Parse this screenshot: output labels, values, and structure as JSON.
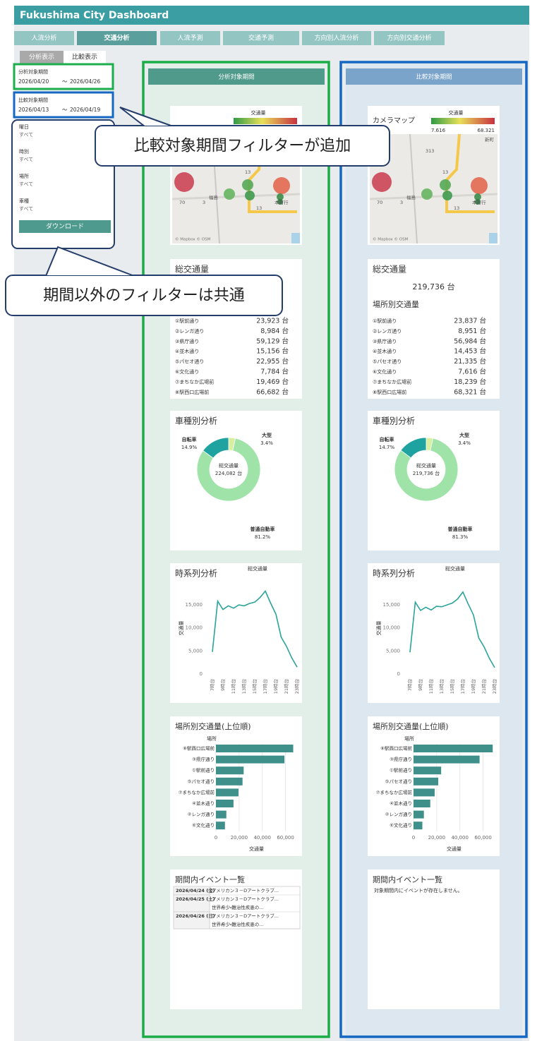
{
  "header": {
    "title": "Fukushima City Dashboard"
  },
  "tabs": [
    {
      "label": "人流分析"
    },
    {
      "label": "交通分析",
      "active": true
    },
    {
      "label": "人流予測"
    },
    {
      "label": "交通予測"
    },
    {
      "label": "方向別人流分析"
    },
    {
      "label": "方向別交通分析"
    }
  ],
  "view_tabs": [
    {
      "label": "分析表示"
    },
    {
      "label": "比較表示",
      "active": true
    }
  ],
  "filters": {
    "period": {
      "label": "分析対象期間",
      "from": "2026/04/20",
      "separator": "～",
      "to": "2026/04/26"
    },
    "compare": {
      "label": "比較対象期間",
      "from": "2026/04/13",
      "separator": "～",
      "to": "2026/04/19"
    },
    "others": [
      {
        "label": "曜日",
        "value": "すべて"
      },
      {
        "label": "時別",
        "value": "すべて"
      },
      {
        "label": "場所",
        "value": "すべて"
      },
      {
        "label": "車種",
        "value": "すべて"
      }
    ],
    "download": "ダウンロード"
  },
  "callouts": [
    "比較対象期間フィルターが追加",
    "期間以外のフィルターは共通"
  ],
  "panels": [
    {
      "header": "分析対象期間",
      "map": {
        "legend_title": "交通量",
        "labels": [
          "13",
          "70",
          "3",
          "13",
          "福島",
          "本町行"
        ],
        "attribution": "© Mapbox © OSM"
      },
      "total": {
        "title": "総交通量"
      },
      "locations": [
        {
          "name": "①駅前通り",
          "value": "23,923 台"
        },
        {
          "name": "②レンガ通り",
          "value": "8,984 台"
        },
        {
          "name": "③県庁通り",
          "value": "59,129 台"
        },
        {
          "name": "④並木通り",
          "value": "15,156 台"
        },
        {
          "name": "⑤パセオ通り",
          "value": "22,955 台"
        },
        {
          "name": "⑥文化通り",
          "value": "7,784 台"
        },
        {
          "name": "⑦まちなか広場前",
          "value": "19,469 台"
        },
        {
          "name": "⑧駅西口広場前",
          "value": "66,682 台"
        }
      ],
      "vehicle": {
        "type": "pie",
        "title": "車種別分析",
        "center_title": "総交通量",
        "center_value": "224,082 台",
        "categories": [
          "大型",
          "普通自動車",
          "自転車"
        ],
        "values": [
          3.4,
          81.2,
          14.9
        ],
        "value_labels": [
          "3.4%",
          "81.2%",
          "14.9%"
        ],
        "colors": [
          "#d6f0a0",
          "#9fe3a9",
          "#1fa3a0"
        ]
      },
      "timeseries": {
        "type": "line",
        "title": "時系列分析",
        "chart_title": "総交通量",
        "y_label": "交通量",
        "categories": [
          "7時台",
          null,
          "9時台",
          null,
          "11時台",
          null,
          "13時台",
          null,
          "15時台",
          null,
          "17時台",
          null,
          "19時台",
          null,
          "21時台",
          null,
          "23時台"
        ],
        "values": [
          4800,
          15800,
          14000,
          14800,
          14300,
          15000,
          14800,
          15300,
          15600,
          16600,
          18000,
          15400,
          13000,
          8000,
          6000,
          3500,
          1500
        ],
        "color": "#2aa39a",
        "ylim": [
          0,
          19000
        ],
        "yticks": [
          0,
          {
            "value": 5000,
            "label": "5,000"
          },
          {
            "value": 10000,
            "label": "10,000"
          },
          {
            "value": 15000,
            "label": "15,000"
          }
        ]
      },
      "ranking": {
        "type": "bar",
        "orientation": "horizontal",
        "title": "場所別交通量(上位順)",
        "category_header": "場所",
        "x_label": "交通量",
        "categories": [
          "⑧駅西口広場前",
          "③県庁通り",
          "①駅前通り",
          "⑤パセオ通り",
          "⑦まちなか広場前",
          "④並木通り",
          "②レンガ通り",
          "⑥文化通り"
        ],
        "values": [
          66682,
          59129,
          23923,
          22955,
          19469,
          15156,
          8984,
          7784
        ],
        "color": "#3f8f8a",
        "xlim": [
          0,
          70000
        ],
        "xticks": [
          0,
          {
            "value": 20000,
            "label": "20,000"
          },
          {
            "value": 40000,
            "label": "40,000"
          },
          {
            "value": 60000,
            "label": "60,000"
          }
        ]
      },
      "events": {
        "title": "期間内イベント一覧",
        "rows": [
          {
            "date": "2026/04/24 (金)",
            "items": [
              "アメリカン３－Dアートクラブ..."
            ]
          },
          {
            "date": "2026/04/25 (土)",
            "items": [
              "アメリカン３－Dアートクラブ...",
              "世界希少・難治性疾患の..."
            ]
          },
          {
            "date": "2026/04/26 (日)",
            "items": [
              "アメリカン３－Dアートクラブ...",
              "世界希少・難治性疾患の..."
            ]
          }
        ]
      }
    },
    {
      "header": "比較対象期間",
      "map": {
        "title": "カメラマップ",
        "legend_title": "交通量",
        "legend_min": "7.616",
        "legend_max": "68.321",
        "labels": [
          "13",
          "70",
          "3",
          "13",
          "福島",
          "本町行",
          "新町",
          "313"
        ],
        "attribution": "© Mapbox © OSM"
      },
      "total": {
        "title": "総交通量",
        "value": "219,736 台",
        "subtitle": "場所別交通量"
      },
      "locations": [
        {
          "name": "①駅前通り",
          "value": "23,837 台"
        },
        {
          "name": "②レンガ通り",
          "value": "8,951 台"
        },
        {
          "name": "③県庁通り",
          "value": "56,984 台"
        },
        {
          "name": "④並木通り",
          "value": "14,453 台"
        },
        {
          "name": "⑤パセオ通り",
          "value": "21,335 台"
        },
        {
          "name": "⑥文化通り",
          "value": "7,616 台"
        },
        {
          "name": "⑦まちなか広場前",
          "value": "18,239 台"
        },
        {
          "name": "⑧駅西口広場前",
          "value": "68,321 台"
        }
      ],
      "vehicle": {
        "type": "pie",
        "title": "車種別分析",
        "center_title": "総交通量",
        "center_value": "219,736 台",
        "categories": [
          "大型",
          "普通自動車",
          "自転車"
        ],
        "values": [
          3.4,
          81.3,
          14.7
        ],
        "value_labels": [
          "3.4%",
          "81.3%",
          "14.7%"
        ],
        "colors": [
          "#d6f0a0",
          "#9fe3a9",
          "#1fa3a0"
        ]
      },
      "timeseries": {
        "type": "line",
        "title": "時系列分析",
        "chart_title": "総交通量",
        "y_label": "交通量",
        "categories": [
          "7時台",
          null,
          "9時台",
          null,
          "11時台",
          null,
          "13時台",
          null,
          "15時台",
          null,
          "17時台",
          null,
          "19時台",
          null,
          "21時台",
          null,
          "23時台"
        ],
        "values": [
          4700,
          15600,
          13800,
          14500,
          13900,
          14700,
          14600,
          15000,
          15400,
          16300,
          17800,
          15200,
          12800,
          7800,
          5900,
          3400,
          1400
        ],
        "color": "#2aa39a",
        "ylim": [
          0,
          19000
        ],
        "yticks": [
          0,
          {
            "value": 5000,
            "label": "5,000"
          },
          {
            "value": 10000,
            "label": "10,000"
          },
          {
            "value": 15000,
            "label": "15,000"
          }
        ]
      },
      "ranking": {
        "type": "bar",
        "orientation": "horizontal",
        "title": "場所別交通量(上位順)",
        "category_header": "場所",
        "x_label": "交通量",
        "categories": [
          "⑧駅西口広場前",
          "③県庁通り",
          "①駅前通り",
          "⑤パセオ通り",
          "⑦まちなか広場前",
          "④並木通り",
          "②レンガ通り",
          "⑥文化通り"
        ],
        "values": [
          68321,
          56984,
          23837,
          21335,
          18239,
          14453,
          8951,
          7616
        ],
        "color": "#3f8f8a",
        "xlim": [
          0,
          70000
        ],
        "xticks": [
          0,
          {
            "value": 20000,
            "label": "20,000"
          },
          {
            "value": 40000,
            "label": "40,000"
          },
          {
            "value": 60000,
            "label": "60,000"
          }
        ]
      },
      "events": {
        "title": "期間内イベント一覧",
        "message": "対象期間内にイベントが存在しません。"
      }
    }
  ]
}
